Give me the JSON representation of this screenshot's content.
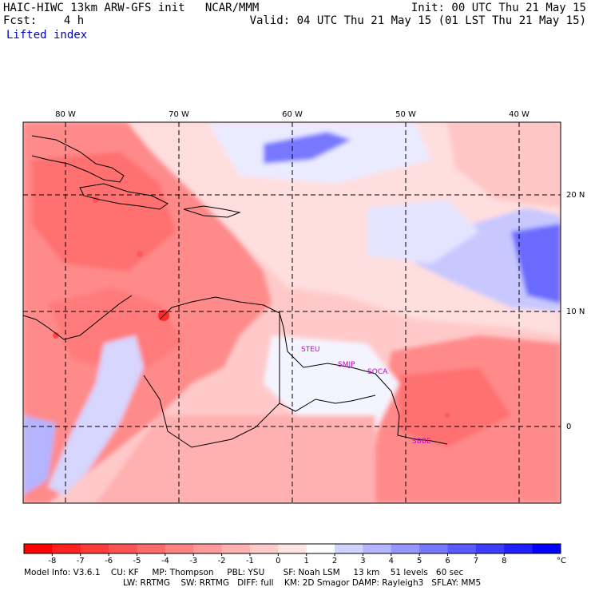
{
  "header": {
    "title_left": "HAIC-HIWC 13km ARW-GFS init   NCAR/MMM",
    "fcst_label": "Fcst:",
    "fcst_value": "4 h",
    "field_name": "Lifted index",
    "init": "Init: 00 UTC Thu 21 May 15",
    "valid": "Valid: 04 UTC Thu 21 May 15 (01 LST Thu 21 May 15)"
  },
  "map": {
    "lon_labels": [
      "80 W",
      "70 W",
      "60 W",
      "50 W",
      "40 W"
    ],
    "lat_labels": [
      "20 N",
      "10 N",
      "0"
    ],
    "stations": [
      "STEU",
      "SMJP",
      "SOCA",
      "SBBE"
    ],
    "colors": {
      "deep_red": "#ff0000",
      "red": "#ff7a7a",
      "pink": "#ffc9c9",
      "white": "#ffffff",
      "light_blue": "#d0d0ff",
      "blue": "#5050ff",
      "station": "#cc00cc"
    }
  },
  "colorbar": {
    "ticks": [
      "-8",
      "-7",
      "-6",
      "-5",
      "-4",
      "-3",
      "-2",
      "-1",
      "0",
      "1",
      "2",
      "3",
      "4",
      "5",
      "6",
      "7",
      "8"
    ],
    "unit": "°C",
    "colors": [
      "#ff0000",
      "#ff2020",
      "#ff3a3a",
      "#ff5252",
      "#ff6a6a",
      "#ff8282",
      "#ff9a9a",
      "#ffb2b2",
      "#ffcaca",
      "#ffe4e4",
      "#ffffff",
      "#d2d2ff",
      "#b4b4ff",
      "#9696ff",
      "#7878ff",
      "#5a5aff",
      "#3c3cff",
      "#1e1eff",
      "#0000ff"
    ]
  },
  "footer": {
    "line1": "Model Info: V3.6.1    CU: KF     MP: Thompson     PBL: YSU       SF: Noah LSM     13 km    51 levels   60 sec",
    "line2": "LW: RRTMG    SW: RRTMG   DIFF: full    KM: 2D Smagor DAMP: Rayleigh3   SFLAY: MM5"
  }
}
